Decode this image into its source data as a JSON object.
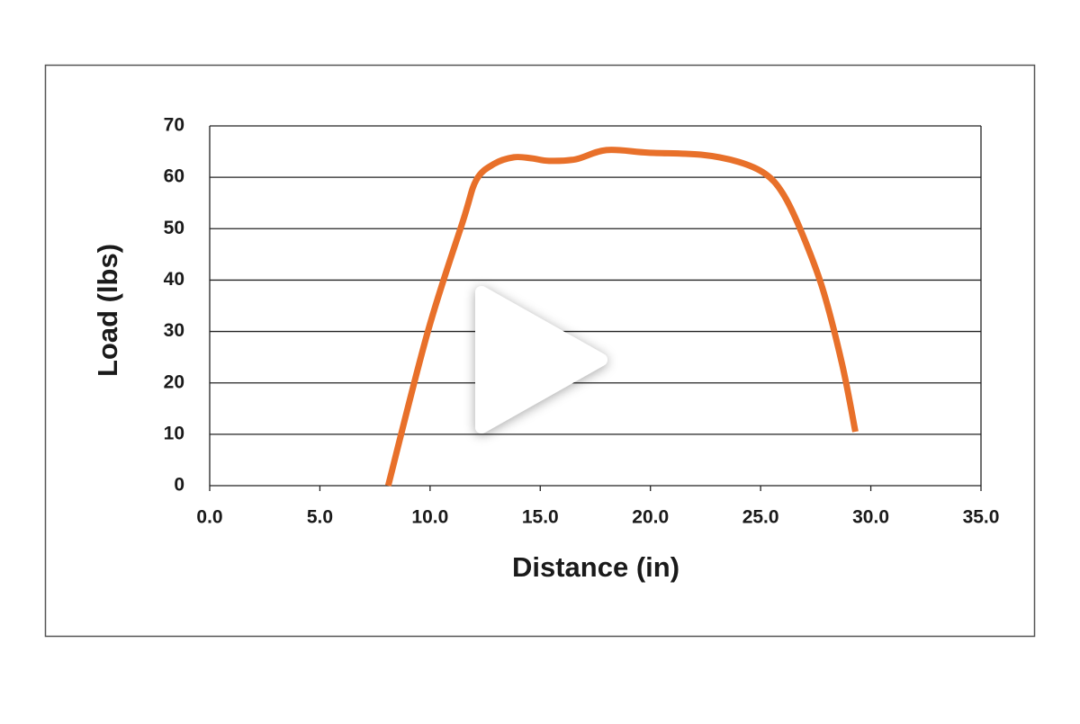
{
  "chart_data": {
    "type": "line",
    "xlabel": "Distance (in)",
    "ylabel": "Load (lbs)",
    "x": [
      8.1,
      9.9,
      11.5,
      12.1,
      12.9,
      13.8,
      14.6,
      15.4,
      16.6,
      18.0,
      19.9,
      22.3,
      24.0,
      25.2,
      26.0,
      26.8,
      27.8,
      28.7,
      29.3
    ],
    "series": [
      {
        "color": "#e8702a",
        "values": [
          0,
          30,
          51.6,
          59.5,
          62.6,
          63.9,
          63.7,
          63.2,
          63.5,
          65.3,
          64.8,
          64.4,
          63,
          60.7,
          56.9,
          49.9,
          38.5,
          23.6,
          10.5
        ]
      }
    ],
    "xlim": [
      0,
      35
    ],
    "ylim": [
      0,
      70
    ],
    "xticks": [
      {
        "value": 0,
        "label": "0.0"
      },
      {
        "value": 5,
        "label": "5.0"
      },
      {
        "value": 10,
        "label": "10.0"
      },
      {
        "value": 15,
        "label": "15.0"
      },
      {
        "value": 20,
        "label": "20.0"
      },
      {
        "value": 25,
        "label": "25.0"
      },
      {
        "value": 30,
        "label": "30.0"
      },
      {
        "value": 35,
        "label": "35.0"
      }
    ],
    "yticks": [
      0,
      10,
      20,
      30,
      40,
      50,
      60,
      70
    ],
    "grid": true
  }
}
